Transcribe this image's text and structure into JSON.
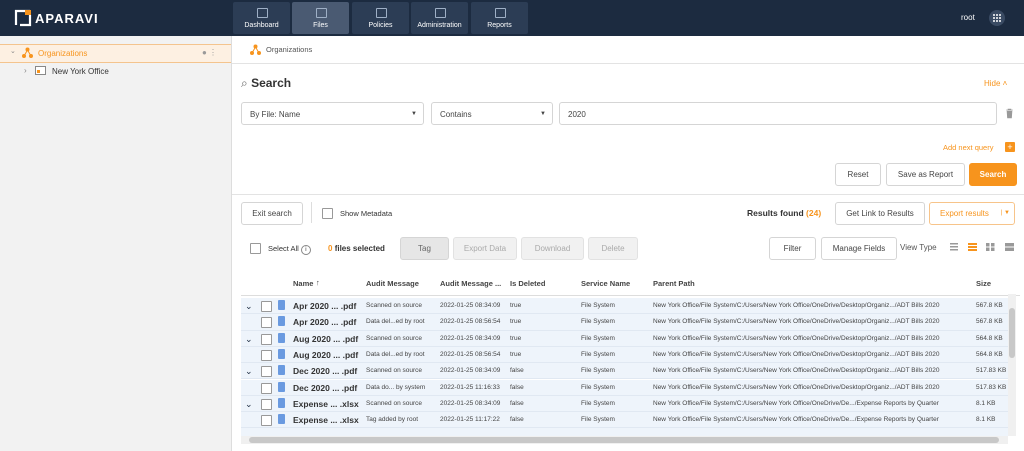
{
  "header": {
    "logo": "APARAVI",
    "nav": [
      "Dashboard",
      "Files",
      "Policies",
      "Administration",
      "Reports"
    ],
    "user": "root"
  },
  "sidebar": {
    "tree": [
      "Organizations",
      "New York Office"
    ]
  },
  "breadcrumb": "Organizations",
  "search": {
    "title": "Search",
    "hide": "Hide",
    "field": "By File: Name",
    "operator": "Contains",
    "value": "2020",
    "add_query": "Add next query",
    "reset": "Reset",
    "save": "Save as Report",
    "submit": "Search"
  },
  "results": {
    "exit": "Exit search",
    "show_metadata": "Show Metadata",
    "found_label": "Results found",
    "found_count": "(24)",
    "get_link": "Get Link to Results",
    "export": "Export results"
  },
  "toolbar": {
    "select_all": "Select All",
    "selected_count": "0",
    "selected_label": "files selected",
    "actions": [
      "Tag",
      "Export Data",
      "Download",
      "Delete"
    ],
    "filter": "Filter",
    "manage_fields": "Manage Fields",
    "view_type": "View Type"
  },
  "table": {
    "columns": [
      "Name",
      "Audit Message",
      "Audit Message ...",
      "Is Deleted",
      "Service Name",
      "Parent Path",
      "Size"
    ],
    "expandable": [
      true,
      false,
      true,
      false,
      true,
      false,
      true,
      false
    ],
    "rows": [
      [
        "Apr 2020 ... .pdf",
        "Scanned on source",
        "2022-01-25 08:34:09",
        "true",
        "File System",
        "New York Office/File System/C:/Users/New York Office/OneDrive/Desktop/Organiz.../ADT Bills 2020",
        "567.8 KB"
      ],
      [
        "Apr 2020 ... .pdf",
        "Data del...ed by root",
        "2022-01-25 08:56:54",
        "true",
        "File System",
        "New York Office/File System/C:/Users/New York Office/OneDrive/Desktop/Organiz.../ADT Bills 2020",
        "567.8 KB"
      ],
      [
        "Aug 2020 ... .pdf",
        "Scanned on source",
        "2022-01-25 08:34:09",
        "true",
        "File System",
        "New York Office/File System/C:/Users/New York Office/OneDrive/Desktop/Organiz.../ADT Bills 2020",
        "564.8 KB"
      ],
      [
        "Aug 2020 ... .pdf",
        "Data del...ed by root",
        "2022-01-25 08:56:54",
        "true",
        "File System",
        "New York Office/File System/C:/Users/New York Office/OneDrive/Desktop/Organiz.../ADT Bills 2020",
        "564.8 KB"
      ],
      [
        "Dec 2020 ... .pdf",
        "Scanned on source",
        "2022-01-25 08:34:09",
        "false",
        "File System",
        "New York Office/File System/C:/Users/New York Office/OneDrive/Desktop/Organiz.../ADT Bills 2020",
        "517.83 KB"
      ],
      [
        "Dec 2020 ... .pdf",
        "Data do... by system",
        "2022-01-25 11:16:33",
        "false",
        "File System",
        "New York Office/File System/C:/Users/New York Office/OneDrive/Desktop/Organiz.../ADT Bills 2020",
        "517.83 KB"
      ],
      [
        "Expense ... .xlsx",
        "Scanned on source",
        "2022-01-25 08:34:09",
        "false",
        "File System",
        "New York Office/File System/C:/Users/New York Office/OneDrive/De.../Expense Reports by Quarter",
        "8.1 KB"
      ],
      [
        "Expense ... .xlsx",
        "Tag added by root",
        "2022-01-25 11:17:22",
        "false",
        "File System",
        "New York Office/File System/C:/Users/New York Office/OneDrive/De.../Expense Reports by Quarter",
        "8.1 KB"
      ]
    ]
  }
}
